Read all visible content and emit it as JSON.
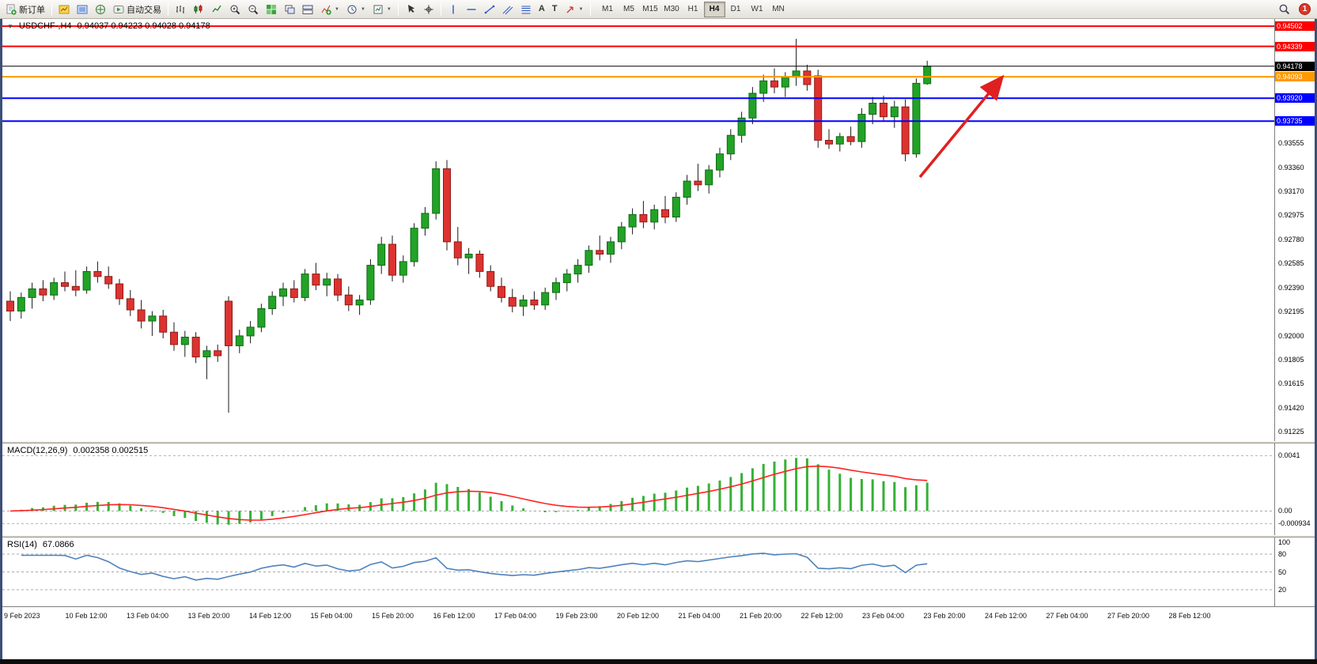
{
  "glyphs": {
    "dropdown": "▼",
    "one_click": "▼",
    "text_tool": "A",
    "label_tool": "T"
  },
  "toolbar": {
    "new_order": "新订单",
    "autotrading": "自动交易",
    "timeframes": [
      "M1",
      "M5",
      "M15",
      "M30",
      "H1",
      "H4",
      "D1",
      "W1",
      "MN"
    ],
    "active_timeframe": "H4",
    "badge_count": "1"
  },
  "main_chart": {
    "title": "USDCHF-,H4",
    "ohlc": "0.94037 0.94223 0.94028 0.94178",
    "scale_labels": [
      "0.93555",
      "0.93360",
      "0.93170",
      "0.92975",
      "0.92780",
      "0.92585",
      "0.92390",
      "0.92195",
      "0.92000",
      "0.91805",
      "0.91615",
      "0.91420",
      "0.91225"
    ],
    "levels": [
      {
        "price": 0.94502,
        "label": "0.94502",
        "color": "#ff0000",
        "width": 2
      },
      {
        "price": 0.94339,
        "label": "0.94339",
        "color": "#ff0000",
        "width": 2
      },
      {
        "price": 0.94178,
        "label": "0.94178",
        "color": "#000000",
        "width": 1
      },
      {
        "price": 0.94093,
        "label": "0.94093",
        "color": "#ff9900",
        "width": 2
      },
      {
        "price": 0.9392,
        "label": "0.93920",
        "color": "#0000ff",
        "width": 2
      },
      {
        "price": 0.93735,
        "label": "0.93735",
        "color": "#0000ff",
        "width": 2
      }
    ]
  },
  "macd": {
    "label": "MACD(12,26,9)",
    "values": "0.002358 0.002515",
    "scale_labels": [
      "0.0041",
      "0.00",
      "-0.000934"
    ],
    "fast": 12,
    "slow": 26,
    "signal": 9
  },
  "rsi": {
    "label": "RSI(14)",
    "value": "67.0866",
    "period": 14,
    "levels": [
      80,
      50,
      20
    ],
    "scale_labels": [
      "100",
      "80",
      "50",
      "20"
    ]
  },
  "time_axis": [
    "9 Feb 2023",
    "10 Feb 12:00",
    "13 Feb 04:00",
    "13 Feb 20:00",
    "14 Feb 12:00",
    "15 Feb 04:00",
    "15 Feb 20:00",
    "16 Feb 12:00",
    "17 Feb 04:00",
    "19 Feb 23:00",
    "20 Feb 12:00",
    "21 Feb 04:00",
    "21 Feb 20:00",
    "22 Feb 12:00",
    "23 Feb 04:00",
    "23 Feb 20:00",
    "24 Feb 12:00",
    "27 Feb 04:00",
    "27 Feb 20:00",
    "28 Feb 12:00"
  ],
  "colors": {
    "bull": "#22a327",
    "bull_border": "#0f6a12",
    "bear": "#dd3330",
    "bear_border": "#8f1b17",
    "wick": "#1a1a1a",
    "macd_hist": "#35b135",
    "macd_signal": "#ff2222",
    "rsi": "#4f81bd",
    "arrow": "#e02020"
  },
  "chart_data": {
    "type": "candlestick",
    "symbol": "USDCHF",
    "timeframe": "H4",
    "ohlc_current": {
      "open": 0.94037,
      "high": 0.94223,
      "low": 0.94028,
      "close": 0.94178
    },
    "y_range": [
      0.9115,
      0.9456
    ],
    "indicators": [
      {
        "name": "MACD",
        "params": [
          12,
          26,
          9
        ],
        "current": [
          0.002358,
          0.002515
        ]
      },
      {
        "name": "RSI",
        "params": [
          14
        ],
        "current": 67.0866
      }
    ],
    "annotations": [
      {
        "type": "arrow",
        "color": "#e02020",
        "from": [
          1160,
          200
        ],
        "to": [
          1262,
          76
        ]
      }
    ],
    "candles": [
      [
        0.9228,
        0.9236,
        0.9212,
        0.922
      ],
      [
        0.922,
        0.9235,
        0.9214,
        0.9231
      ],
      [
        0.9231,
        0.9243,
        0.9222,
        0.9238
      ],
      [
        0.9238,
        0.9245,
        0.9228,
        0.9233
      ],
      [
        0.9233,
        0.9247,
        0.9229,
        0.9243
      ],
      [
        0.9243,
        0.9252,
        0.9236,
        0.924
      ],
      [
        0.924,
        0.9253,
        0.9232,
        0.9237
      ],
      [
        0.9237,
        0.9256,
        0.9234,
        0.9252
      ],
      [
        0.9252,
        0.926,
        0.9243,
        0.9248
      ],
      [
        0.9248,
        0.9256,
        0.9238,
        0.9242
      ],
      [
        0.9242,
        0.9246,
        0.9225,
        0.923
      ],
      [
        0.923,
        0.9237,
        0.9216,
        0.9221
      ],
      [
        0.9221,
        0.9229,
        0.9206,
        0.9212
      ],
      [
        0.9212,
        0.922,
        0.92,
        0.9216
      ],
      [
        0.9216,
        0.9221,
        0.9198,
        0.9203
      ],
      [
        0.9203,
        0.9211,
        0.9188,
        0.9193
      ],
      [
        0.9193,
        0.9204,
        0.9183,
        0.9199
      ],
      [
        0.9199,
        0.9203,
        0.9178,
        0.9183
      ],
      [
        0.9183,
        0.9192,
        0.9165,
        0.9188
      ],
      [
        0.9188,
        0.9193,
        0.9179,
        0.9184
      ],
      [
        0.9228,
        0.9232,
        0.9138,
        0.9192
      ],
      [
        0.9192,
        0.9205,
        0.9186,
        0.92
      ],
      [
        0.92,
        0.9212,
        0.9194,
        0.9207
      ],
      [
        0.9207,
        0.9226,
        0.9203,
        0.9222
      ],
      [
        0.9222,
        0.9236,
        0.9217,
        0.9232
      ],
      [
        0.9232,
        0.9243,
        0.9224,
        0.9238
      ],
      [
        0.9238,
        0.9245,
        0.9227,
        0.9231
      ],
      [
        0.9231,
        0.9254,
        0.9228,
        0.925
      ],
      [
        0.925,
        0.9259,
        0.9237,
        0.9241
      ],
      [
        0.9241,
        0.9251,
        0.9232,
        0.9246
      ],
      [
        0.9246,
        0.925,
        0.9228,
        0.9233
      ],
      [
        0.9233,
        0.924,
        0.922,
        0.9225
      ],
      [
        0.9225,
        0.9233,
        0.9217,
        0.9229
      ],
      [
        0.9229,
        0.9262,
        0.9225,
        0.9257
      ],
      [
        0.9257,
        0.928,
        0.925,
        0.9274
      ],
      [
        0.9274,
        0.9281,
        0.9244,
        0.9249
      ],
      [
        0.9249,
        0.9265,
        0.9243,
        0.926
      ],
      [
        0.926,
        0.9291,
        0.9256,
        0.9287
      ],
      [
        0.9287,
        0.9304,
        0.9281,
        0.9299
      ],
      [
        0.9299,
        0.9341,
        0.9294,
        0.9335
      ],
      [
        0.9335,
        0.9342,
        0.9269,
        0.9276
      ],
      [
        0.9276,
        0.9288,
        0.9257,
        0.9263
      ],
      [
        0.9263,
        0.9271,
        0.925,
        0.9266
      ],
      [
        0.9266,
        0.9269,
        0.9247,
        0.9252
      ],
      [
        0.9252,
        0.9257,
        0.9236,
        0.924
      ],
      [
        0.924,
        0.9247,
        0.9227,
        0.9231
      ],
      [
        0.9231,
        0.9238,
        0.9219,
        0.9224
      ],
      [
        0.9224,
        0.9233,
        0.9216,
        0.9229
      ],
      [
        0.9229,
        0.9236,
        0.9221,
        0.9225
      ],
      [
        0.9225,
        0.9239,
        0.9221,
        0.9235
      ],
      [
        0.9235,
        0.9247,
        0.9229,
        0.9243
      ],
      [
        0.9243,
        0.9254,
        0.9236,
        0.925
      ],
      [
        0.925,
        0.9262,
        0.9243,
        0.9257
      ],
      [
        0.9257,
        0.9273,
        0.9251,
        0.9269
      ],
      [
        0.9269,
        0.9281,
        0.9261,
        0.9266
      ],
      [
        0.9266,
        0.928,
        0.9259,
        0.9276
      ],
      [
        0.9276,
        0.9292,
        0.927,
        0.9288
      ],
      [
        0.9288,
        0.9303,
        0.9282,
        0.9298
      ],
      [
        0.9298,
        0.9309,
        0.9287,
        0.9292
      ],
      [
        0.9292,
        0.9306,
        0.9286,
        0.9302
      ],
      [
        0.9302,
        0.9313,
        0.9291,
        0.9296
      ],
      [
        0.9296,
        0.9316,
        0.9292,
        0.9312
      ],
      [
        0.9312,
        0.933,
        0.9306,
        0.9325
      ],
      [
        0.9325,
        0.9339,
        0.9317,
        0.9322
      ],
      [
        0.9322,
        0.9338,
        0.9315,
        0.9334
      ],
      [
        0.9334,
        0.9352,
        0.9328,
        0.9347
      ],
      [
        0.9347,
        0.9367,
        0.9342,
        0.9362
      ],
      [
        0.9362,
        0.9381,
        0.9356,
        0.9376
      ],
      [
        0.9376,
        0.9401,
        0.9371,
        0.9396
      ],
      [
        0.9396,
        0.9411,
        0.9389,
        0.9406
      ],
      [
        0.9406,
        0.9416,
        0.9396,
        0.9401
      ],
      [
        0.9401,
        0.9413,
        0.9393,
        0.9409
      ],
      [
        0.9409,
        0.944,
        0.9402,
        0.9414
      ],
      [
        0.9414,
        0.9419,
        0.9398,
        0.9403
      ],
      [
        0.941,
        0.9415,
        0.9352,
        0.9358
      ],
      [
        0.9358,
        0.9367,
        0.9351,
        0.9355
      ],
      [
        0.9355,
        0.9364,
        0.9349,
        0.9361
      ],
      [
        0.9361,
        0.9369,
        0.9354,
        0.9357
      ],
      [
        0.9357,
        0.9384,
        0.9352,
        0.9379
      ],
      [
        0.9379,
        0.9393,
        0.9371,
        0.9388
      ],
      [
        0.9388,
        0.9394,
        0.9374,
        0.9377
      ],
      [
        0.9377,
        0.939,
        0.9368,
        0.9385
      ],
      [
        0.9385,
        0.9391,
        0.9341,
        0.9347
      ],
      [
        0.9347,
        0.9408,
        0.9344,
        0.9404
      ],
      [
        0.94037,
        0.94223,
        0.94028,
        0.94178
      ]
    ]
  }
}
